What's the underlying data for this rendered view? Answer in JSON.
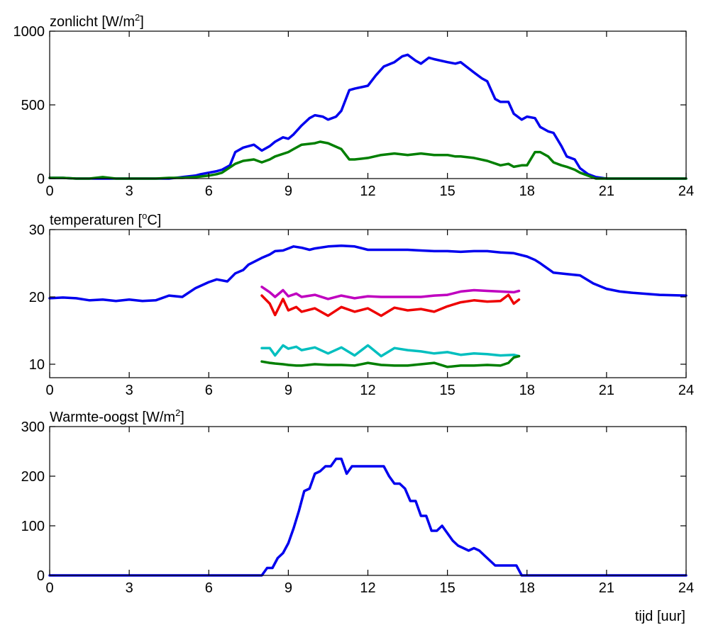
{
  "chart_data": [
    {
      "type": "line",
      "title": "zonlicht [W/m²]",
      "title_base": "zonlicht [W/m",
      "title_sup": "2",
      "title_tail": "]",
      "xlabel": "",
      "ylabel": "",
      "xlim": [
        0,
        24
      ],
      "ylim": [
        0,
        1000
      ],
      "xticks": [
        0,
        3,
        6,
        9,
        12,
        15,
        18,
        21,
        24
      ],
      "yticks": [
        0,
        500,
        1000
      ],
      "grid": false,
      "series": [
        {
          "color": "#0000ee",
          "x": [
            0,
            0.5,
            1,
            1.5,
            2,
            2.5,
            3,
            3.5,
            4,
            4.5,
            5,
            5.5,
            5.7,
            6,
            6.3,
            6.5,
            6.8,
            7,
            7.3,
            7.7,
            8,
            8.3,
            8.5,
            8.8,
            9,
            9.2,
            9.5,
            9.8,
            10,
            10.3,
            10.5,
            10.8,
            11,
            11.3,
            11.5,
            12,
            12.3,
            12.6,
            13,
            13.3,
            13.5,
            13.8,
            14,
            14.3,
            14.5,
            15,
            15.3,
            15.5,
            16,
            16.3,
            16.5,
            16.8,
            17,
            17.3,
            17.5,
            17.8,
            18,
            18.3,
            18.5,
            18.8,
            19,
            19.3,
            19.5,
            19.8,
            20,
            20.3,
            20.6,
            21,
            24
          ],
          "y": [
            5,
            5,
            0,
            0,
            0,
            0,
            0,
            0,
            0,
            0,
            10,
            20,
            30,
            40,
            50,
            60,
            90,
            180,
            210,
            230,
            190,
            220,
            250,
            280,
            270,
            300,
            360,
            410,
            430,
            420,
            400,
            420,
            460,
            600,
            610,
            630,
            700,
            760,
            790,
            830,
            840,
            800,
            780,
            820,
            810,
            790,
            780,
            790,
            720,
            680,
            660,
            540,
            520,
            520,
            440,
            400,
            420,
            410,
            350,
            320,
            310,
            220,
            150,
            130,
            70,
            30,
            10,
            0,
            0
          ]
        },
        {
          "color": "#007f00",
          "x": [
            0,
            0.5,
            1,
            1.5,
            2,
            2.5,
            3,
            3.5,
            4,
            4.5,
            5,
            5.5,
            6,
            6.3,
            6.5,
            7,
            7.3,
            7.7,
            8,
            8.3,
            8.5,
            9,
            9.2,
            9.5,
            10,
            10.2,
            10.5,
            11,
            11.3,
            11.5,
            12,
            12.5,
            13,
            13.5,
            14,
            14.5,
            15,
            15.3,
            15.5,
            16,
            16.5,
            17,
            17.3,
            17.5,
            17.8,
            18,
            18.3,
            18.5,
            18.8,
            19,
            19.3,
            19.5,
            19.8,
            20,
            20.3,
            20.6,
            21,
            24
          ],
          "y": [
            5,
            5,
            0,
            0,
            10,
            0,
            0,
            0,
            0,
            5,
            5,
            10,
            20,
            30,
            40,
            100,
            120,
            130,
            110,
            130,
            150,
            180,
            200,
            230,
            240,
            250,
            240,
            200,
            130,
            130,
            140,
            160,
            170,
            160,
            170,
            160,
            160,
            150,
            150,
            140,
            120,
            90,
            100,
            80,
            90,
            90,
            180,
            180,
            150,
            110,
            90,
            80,
            60,
            40,
            20,
            0,
            0,
            0
          ]
        }
      ]
    },
    {
      "type": "line",
      "title": "temperaturen [°C]",
      "title_base": "temperaturen [",
      "title_sup": "o",
      "title_tail": "C]",
      "xlabel": "",
      "ylabel": "",
      "xlim": [
        0,
        24
      ],
      "ylim": [
        8,
        30
      ],
      "xticks": [
        0,
        3,
        6,
        9,
        12,
        15,
        18,
        21,
        24
      ],
      "yticks": [
        10,
        20,
        30
      ],
      "grid": false,
      "series": [
        {
          "color": "#0000ee",
          "x": [
            0,
            0.5,
            1,
            1.5,
            2,
            2.5,
            3,
            3.5,
            4,
            4.5,
            5,
            5.5,
            6,
            6.3,
            6.7,
            7,
            7.3,
            7.5,
            8,
            8.3,
            8.5,
            8.8,
            9,
            9.2,
            9.5,
            9.8,
            10,
            10.5,
            11,
            11.5,
            12,
            12.5,
            13,
            13.5,
            14,
            14.5,
            15,
            15.5,
            16,
            16.5,
            17,
            17.5,
            18,
            18.3,
            18.5,
            19,
            19.5,
            20,
            20.5,
            21,
            21.5,
            22,
            23,
            24
          ],
          "y": [
            19.8,
            19.9,
            19.8,
            19.5,
            19.6,
            19.4,
            19.6,
            19.4,
            19.5,
            20.2,
            20.0,
            21.3,
            22.2,
            22.6,
            22.3,
            23.5,
            24.0,
            24.8,
            25.8,
            26.3,
            26.8,
            26.9,
            27.2,
            27.5,
            27.3,
            27.0,
            27.2,
            27.5,
            27.6,
            27.5,
            27.0,
            27.0,
            27.0,
            27.0,
            26.9,
            26.8,
            26.8,
            26.7,
            26.8,
            26.8,
            26.6,
            26.5,
            26.0,
            25.5,
            25.0,
            23.6,
            23.4,
            23.2,
            22.0,
            21.2,
            20.8,
            20.6,
            20.3,
            20.2
          ]
        },
        {
          "color": "#bf00bf",
          "x": [
            8,
            8.3,
            8.5,
            8.8,
            9,
            9.3,
            9.5,
            10,
            10.5,
            11,
            11.5,
            12,
            12.5,
            13,
            13.5,
            14,
            14.5,
            15,
            15.5,
            16,
            16.5,
            17,
            17.5,
            17.7
          ],
          "y": [
            21.5,
            20.7,
            20.0,
            21.0,
            20.1,
            20.5,
            20.0,
            20.3,
            19.7,
            20.2,
            19.8,
            20.1,
            20.0,
            20.0,
            20.0,
            20.0,
            20.2,
            20.3,
            20.8,
            21.0,
            20.9,
            20.8,
            20.7,
            20.9
          ]
        },
        {
          "color": "#ee0000",
          "x": [
            8,
            8.3,
            8.5,
            8.8,
            9,
            9.3,
            9.5,
            10,
            10.5,
            11,
            11.5,
            12,
            12.5,
            13,
            13.5,
            14,
            14.5,
            15,
            15.5,
            16,
            16.5,
            17,
            17.3,
            17.5,
            17.7
          ],
          "y": [
            20.2,
            19.0,
            17.3,
            19.7,
            18.0,
            18.5,
            17.8,
            18.3,
            17.2,
            18.5,
            17.8,
            18.3,
            17.2,
            18.4,
            18.0,
            18.2,
            17.8,
            18.6,
            19.2,
            19.5,
            19.3,
            19.4,
            20.3,
            19.0,
            19.6
          ]
        },
        {
          "color": "#00bfbf",
          "x": [
            8,
            8.3,
            8.5,
            8.8,
            9,
            9.3,
            9.5,
            10,
            10.5,
            11,
            11.5,
            12,
            12.5,
            13,
            13.5,
            14,
            14.5,
            15,
            15.5,
            16,
            16.5,
            17,
            17.5,
            17.7
          ],
          "y": [
            12.4,
            12.4,
            11.3,
            12.8,
            12.3,
            12.6,
            12.1,
            12.5,
            11.6,
            12.5,
            11.3,
            12.8,
            11.2,
            12.4,
            12.1,
            11.9,
            11.6,
            11.8,
            11.4,
            11.6,
            11.5,
            11.3,
            11.4,
            11.2
          ]
        },
        {
          "color": "#007f00",
          "x": [
            8,
            8.3,
            8.5,
            8.8,
            9,
            9.3,
            9.5,
            10,
            10.5,
            11,
            11.5,
            12,
            12.5,
            13,
            13.5,
            14,
            14.5,
            15,
            15.5,
            16,
            16.5,
            17,
            17.3,
            17.5,
            17.7
          ],
          "y": [
            10.4,
            10.2,
            10.1,
            10.0,
            9.9,
            9.8,
            9.8,
            10.0,
            9.9,
            9.9,
            9.8,
            10.2,
            9.9,
            9.8,
            9.8,
            10.0,
            10.2,
            9.6,
            9.8,
            9.8,
            9.9,
            9.8,
            10.2,
            11.0,
            11.2
          ]
        }
      ]
    },
    {
      "type": "line",
      "title": "Warmte-oogst [W/m²]",
      "title_base": "Warmte-oogst [W/m",
      "title_sup": "2",
      "title_tail": "]",
      "xlabel": "tijd [uur]",
      "ylabel": "",
      "xlim": [
        0,
        24
      ],
      "ylim": [
        0,
        300
      ],
      "xticks": [
        0,
        3,
        6,
        9,
        12,
        15,
        18,
        21,
        24
      ],
      "yticks": [
        0,
        100,
        200,
        300
      ],
      "grid": false,
      "series": [
        {
          "color": "#0000ee",
          "x": [
            0,
            7.8,
            8.0,
            8.2,
            8.4,
            8.6,
            8.8,
            9.0,
            9.2,
            9.4,
            9.6,
            9.8,
            10.0,
            10.2,
            10.4,
            10.6,
            10.8,
            11.0,
            11.2,
            11.4,
            11.6,
            11.8,
            12.0,
            12.2,
            12.4,
            12.6,
            12.8,
            13.0,
            13.2,
            13.4,
            13.6,
            13.8,
            14.0,
            14.2,
            14.4,
            14.6,
            14.8,
            15.0,
            15.2,
            15.4,
            15.6,
            15.8,
            16.0,
            16.2,
            16.4,
            16.6,
            16.8,
            17.0,
            17.2,
            17.4,
            17.6,
            17.8,
            18.0,
            24
          ],
          "y": [
            0,
            0,
            0,
            15,
            15,
            35,
            45,
            65,
            95,
            130,
            170,
            175,
            205,
            210,
            220,
            220,
            235,
            235,
            205,
            220,
            220,
            220,
            220,
            220,
            220,
            220,
            200,
            185,
            185,
            175,
            150,
            150,
            120,
            120,
            90,
            90,
            100,
            85,
            70,
            60,
            55,
            50,
            55,
            50,
            40,
            30,
            20,
            20,
            20,
            20,
            20,
            0,
            0,
            0
          ]
        }
      ]
    }
  ]
}
